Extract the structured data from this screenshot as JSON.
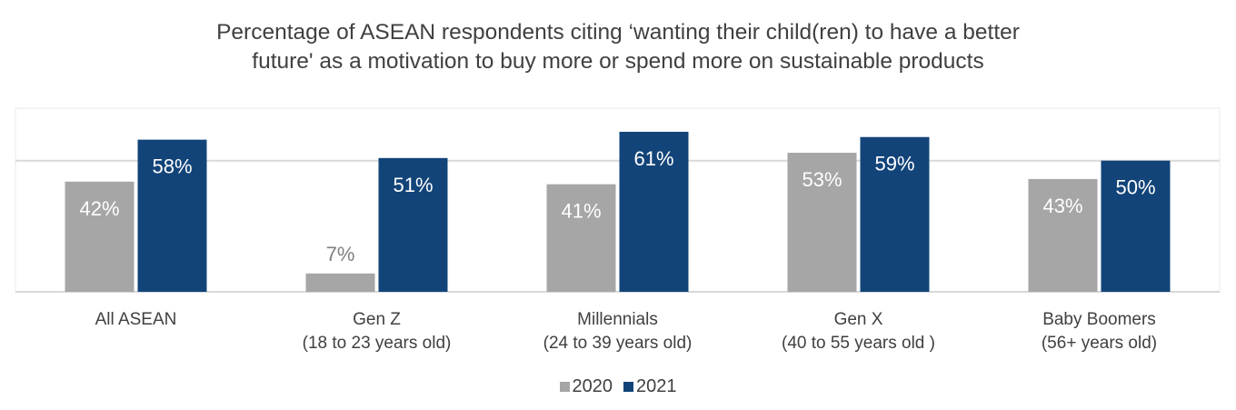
{
  "chart_data": {
    "type": "bar",
    "title": "Percentage of ASEAN respondents citing ‘wanting their child(ren) to have a better future' as a motivation to buy more or spend more on sustainable products",
    "title_lines": [
      "Percentage of ASEAN respondents citing ‘wanting their child(ren) to have a better",
      "future' as a motivation to buy more or spend more on sustainable products"
    ],
    "categories": [
      [
        "All ASEAN"
      ],
      [
        "Gen Z",
        "(18 to 23 years old)"
      ],
      [
        "Millennials",
        "(24 to 39 years old)"
      ],
      [
        "Gen X",
        "(40 to 55 years old )"
      ],
      [
        "Baby Boomers",
        "(56+ years old)"
      ]
    ],
    "series": [
      {
        "name": "2020",
        "color": "#a6a6a6",
        "label_color": "#ffffff",
        "values": [
          42,
          7,
          41,
          53,
          43
        ],
        "labels": [
          "42%",
          "7%",
          "41%",
          "53%",
          "43%"
        ]
      },
      {
        "name": "2021",
        "color": "#124479",
        "label_color": "#ffffff",
        "values": [
          58,
          51,
          61,
          59,
          50
        ],
        "labels": [
          "58%",
          "51%",
          "61%",
          "59%",
          "50%"
        ]
      }
    ],
    "xlabel": "",
    "ylabel": "",
    "ylim": [
      0,
      70
    ],
    "gridlines": [
      50
    ],
    "grid": true,
    "y_axis_visible": false,
    "legend_position": "bottom-center",
    "legend": [
      "2020",
      "2021"
    ],
    "small_value_label_color": "#7f7f7f"
  }
}
